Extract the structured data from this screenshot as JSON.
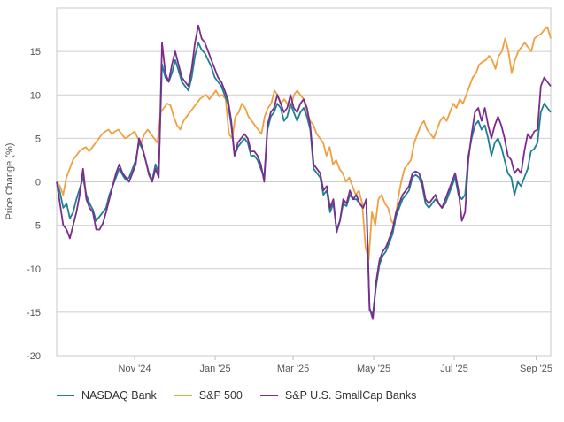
{
  "chart_data": {
    "type": "line",
    "title": "",
    "xlabel": "",
    "ylabel": "Price Change (%)",
    "ylim": [
      -20,
      20
    ],
    "yticks": [
      -20,
      -15,
      -10,
      -5,
      0,
      5,
      10,
      15
    ],
    "x_range": [
      "2024-09-03",
      "2025-09-12"
    ],
    "xticks": [
      {
        "label": "Nov '24",
        "date": "2024-11-01"
      },
      {
        "label": "Jan '25",
        "date": "2025-01-01"
      },
      {
        "label": "Mar '25",
        "date": "2025-03-01"
      },
      {
        "label": "May '25",
        "date": "2025-05-01"
      },
      {
        "label": "Jul '25",
        "date": "2025-07-01"
      },
      {
        "label": "Sep '25",
        "date": "2025-09-01"
      }
    ],
    "grid": true,
    "legend_position": "bottom-left",
    "series": [
      {
        "name": "NASDAQ Bank",
        "color": "#1e7f93",
        "values": [
          0,
          -1.2,
          -3.0,
          -2.5,
          -4.2,
          -3.5,
          -2.0,
          -0.8,
          0.5,
          -1.5,
          -2.5,
          -3.2,
          -4.5,
          -4.0,
          -3.5,
          -3.0,
          -1.5,
          -0.5,
          0.5,
          1.5,
          0.8,
          0.2,
          0.5,
          1.5,
          2.5,
          4.5,
          3.8,
          2.5,
          1.0,
          0.2,
          2.0,
          1.0,
          13.5,
          12.0,
          11.5,
          12.5,
          14.0,
          12.8,
          11.5,
          11.0,
          10.5,
          12.0,
          14.5,
          16.0,
          15.2,
          14.8,
          14.0,
          13.2,
          12.0,
          11.5,
          11.0,
          10.0,
          9.0,
          6.5,
          3.0,
          4.0,
          4.5,
          5.0,
          4.5,
          3.0,
          3.0,
          2.5,
          1.5,
          0.5,
          6.0,
          7.5,
          8.0,
          9.0,
          8.5,
          7.0,
          7.5,
          9.0,
          8.0,
          7.0,
          8.0,
          8.5,
          7.5,
          6.0,
          1.5,
          1.0,
          0.5,
          -1.5,
          -1.0,
          -3.5,
          -2.5,
          -5.5,
          -4.5,
          -2.5,
          -2.8,
          -1.5,
          -2.0,
          -2.0,
          -2.5,
          -3.0,
          -2.0,
          -14.8,
          -15.2,
          -12.0,
          -9.5,
          -8.5,
          -8.0,
          -7.0,
          -6.0,
          -4.0,
          -3.0,
          -2.0,
          -1.5,
          -1.0,
          0.5,
          0.8,
          0.5,
          -0.5,
          -2.5,
          -3.0,
          -2.5,
          -2.0,
          -2.5,
          -3.0,
          -2.5,
          -1.5,
          -0.5,
          0.5,
          -1.5,
          -2.0,
          -1.5,
          3.0,
          5.0,
          6.5,
          7.0,
          6.0,
          6.5,
          5.0,
          3.0,
          4.5,
          5.0,
          4.0,
          2.5,
          1.0,
          0.5,
          -1.5,
          0.0,
          -0.5,
          0.5,
          1.5,
          3.5,
          3.8,
          4.5,
          8.0,
          9.0,
          8.5,
          8.0
        ]
      },
      {
        "name": "S&P 500",
        "color": "#f0a040",
        "values": [
          0,
          -0.5,
          -1.5,
          0.5,
          1.5,
          2.5,
          3.0,
          3.5,
          3.8,
          4.0,
          3.5,
          4.0,
          4.5,
          5.0,
          5.5,
          5.8,
          6.0,
          5.5,
          5.8,
          6.0,
          5.5,
          5.0,
          5.2,
          5.5,
          5.8,
          5.0,
          4.5,
          5.5,
          6.0,
          5.5,
          5.0,
          4.5,
          8.0,
          8.5,
          9.0,
          8.8,
          7.5,
          6.5,
          6.0,
          7.0,
          7.5,
          8.0,
          8.5,
          9.0,
          9.5,
          9.8,
          10.0,
          9.5,
          10.0,
          10.5,
          9.8,
          10.0,
          9.5,
          5.5,
          5.0,
          7.5,
          8.0,
          9.0,
          8.5,
          7.5,
          7.0,
          6.5,
          6.0,
          5.5,
          7.5,
          8.5,
          9.0,
          10.5,
          10.0,
          9.0,
          9.5,
          9.0,
          8.5,
          10.0,
          10.5,
          10.0,
          9.5,
          8.0,
          7.0,
          6.5,
          5.5,
          5.0,
          4.5,
          3.0,
          4.0,
          2.0,
          2.5,
          1.5,
          1.0,
          0.0,
          0.5,
          -0.5,
          -1.5,
          -1.0,
          -2.5,
          -7.5,
          -9.0,
          -3.5,
          -5.0,
          -2.0,
          -1.5,
          -2.5,
          -3.0,
          -4.5,
          -5.0,
          -2.0,
          0.0,
          1.5,
          2.0,
          2.5,
          4.5,
          5.5,
          6.5,
          7.0,
          6.0,
          5.5,
          5.0,
          6.0,
          7.0,
          7.5,
          7.0,
          8.0,
          9.0,
          8.5,
          9.5,
          9.0,
          10.0,
          11.0,
          12.0,
          12.5,
          13.5,
          13.8,
          14.0,
          14.5,
          14.0,
          13.0,
          14.5,
          15.0,
          16.5,
          15.0,
          12.5,
          14.0,
          15.0,
          15.5,
          16.0,
          15.5,
          15.0,
          16.5,
          16.8,
          17.0,
          17.5,
          17.8,
          16.5
        ]
      },
      {
        "name": "S&P U.S. SmallCap Banks",
        "color": "#7b2d8e",
        "values": [
          0,
          -2.5,
          -5.0,
          -5.5,
          -6.5,
          -5.0,
          -3.5,
          -1.5,
          1.5,
          -2.0,
          -3.0,
          -3.5,
          -5.5,
          -5.5,
          -4.8,
          -3.5,
          -2.0,
          -0.5,
          1.0,
          2.0,
          1.0,
          0.5,
          0.0,
          1.0,
          2.0,
          5.0,
          4.0,
          2.5,
          0.8,
          0.0,
          1.5,
          0.5,
          16.0,
          12.5,
          11.5,
          13.5,
          15.0,
          13.5,
          12.0,
          11.5,
          11.0,
          13.0,
          16.0,
          18.0,
          16.5,
          16.0,
          15.0,
          14.0,
          13.0,
          12.0,
          11.5,
          10.5,
          9.5,
          7.0,
          3.0,
          4.5,
          5.0,
          5.5,
          5.0,
          3.5,
          3.5,
          3.0,
          2.0,
          0.0,
          6.5,
          8.0,
          8.5,
          10.0,
          9.0,
          8.0,
          8.5,
          10.0,
          8.5,
          8.0,
          9.0,
          9.5,
          8.5,
          6.5,
          2.0,
          1.5,
          1.0,
          -1.0,
          -0.5,
          -3.0,
          -2.0,
          -5.8,
          -4.5,
          -2.0,
          -2.5,
          -1.0,
          -2.0,
          -1.5,
          -2.5,
          -3.0,
          -2.0,
          -14.5,
          -15.8,
          -11.5,
          -9.0,
          -8.0,
          -7.5,
          -6.5,
          -5.5,
          -3.5,
          -2.5,
          -1.5,
          -1.0,
          -0.5,
          1.0,
          1.2,
          1.0,
          0.0,
          -2.0,
          -2.5,
          -2.0,
          -1.5,
          -2.5,
          -3.0,
          -2.0,
          -1.0,
          0.0,
          1.0,
          -1.0,
          -4.5,
          -3.5,
          2.5,
          5.5,
          8.0,
          8.5,
          7.0,
          8.5,
          6.5,
          5.0,
          6.5,
          7.5,
          6.5,
          5.0,
          3.0,
          2.5,
          1.0,
          1.5,
          1.0,
          3.5,
          5.5,
          5.0,
          5.8,
          6.0,
          11.0,
          12.0,
          11.5,
          11.0
        ]
      }
    ]
  },
  "legend": {
    "items": [
      {
        "label": "NASDAQ Bank",
        "color": "#1e7f93"
      },
      {
        "label": "S&P 500",
        "color": "#f0a040"
      },
      {
        "label": "S&P U.S. SmallCap Banks",
        "color": "#7b2d8e"
      }
    ]
  }
}
